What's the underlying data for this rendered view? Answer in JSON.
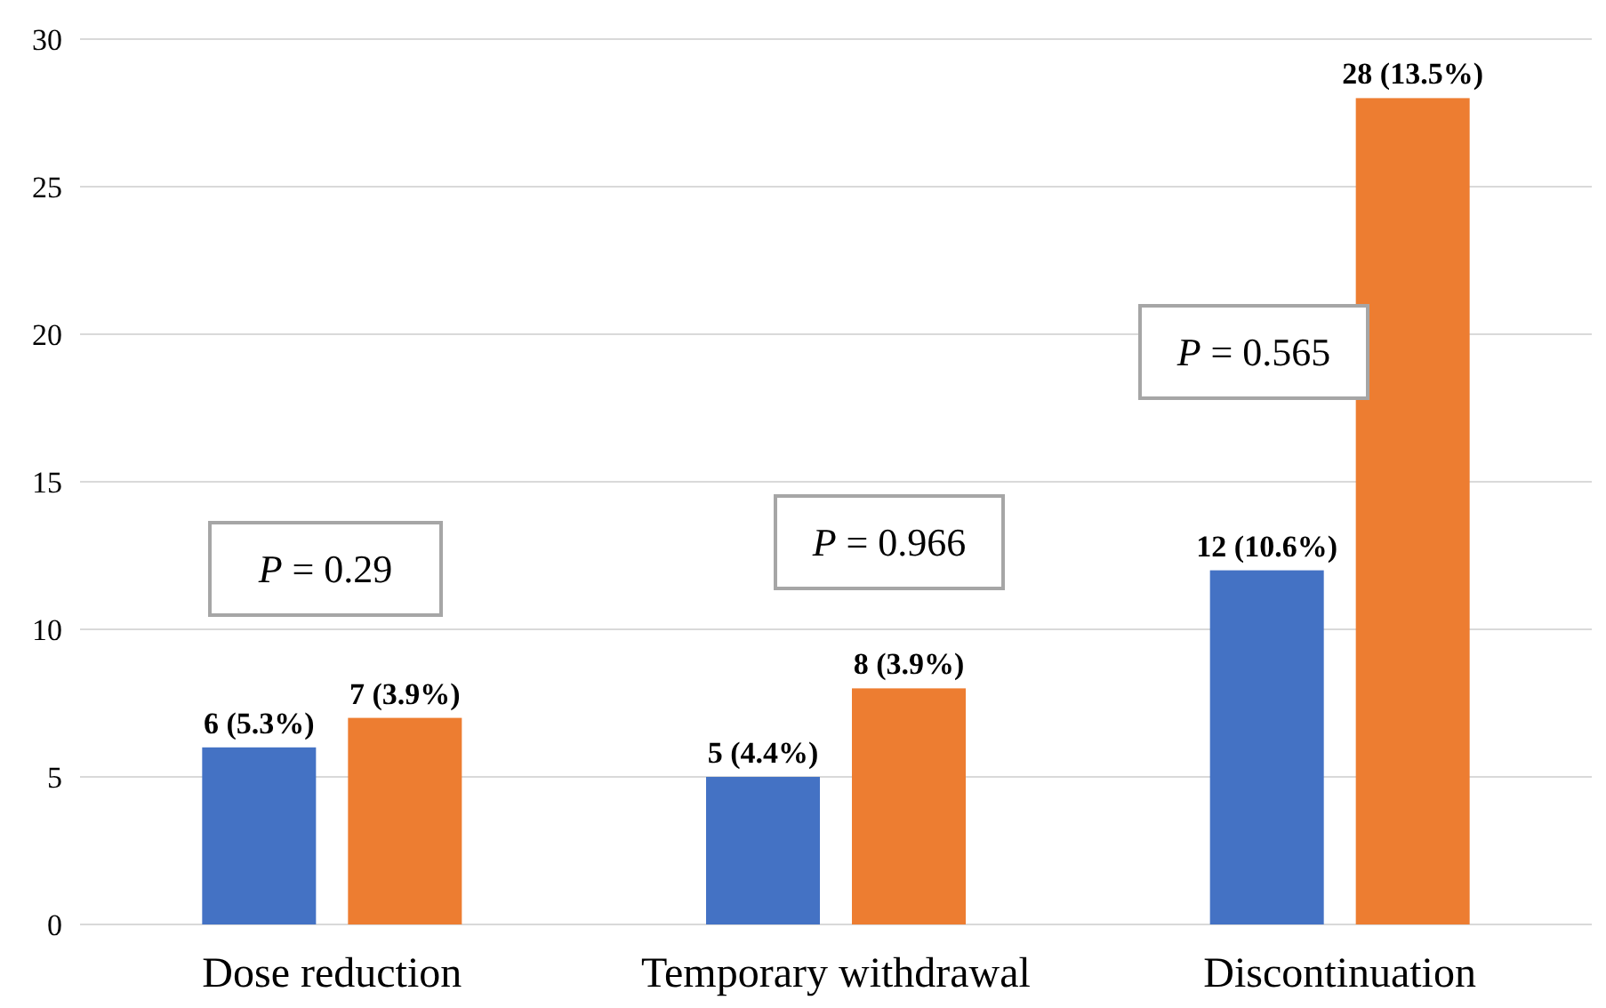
{
  "chart_data": {
    "type": "bar",
    "categories": [
      "Dose reduction",
      "Temporary withdrawal",
      "Discontinuation"
    ],
    "series": [
      {
        "color": "#4472c4",
        "values": [
          6,
          5,
          12
        ],
        "value_labels": [
          "6 (5.3%)",
          "5 (4.4%)",
          "12 (10.6%)"
        ]
      },
      {
        "color": "#ed7d31",
        "values": [
          7,
          8,
          28
        ],
        "value_labels": [
          "7 (3.9%)",
          "8 (3.9%)",
          "28 (13.5%)"
        ]
      }
    ],
    "ylim": [
      0,
      30
    ],
    "yticks": [
      0,
      5,
      10,
      15,
      20,
      25,
      30
    ],
    "grid": "y",
    "annotations": [
      "P = 0.29",
      "P = 0.966",
      "P = 0.565"
    ]
  }
}
